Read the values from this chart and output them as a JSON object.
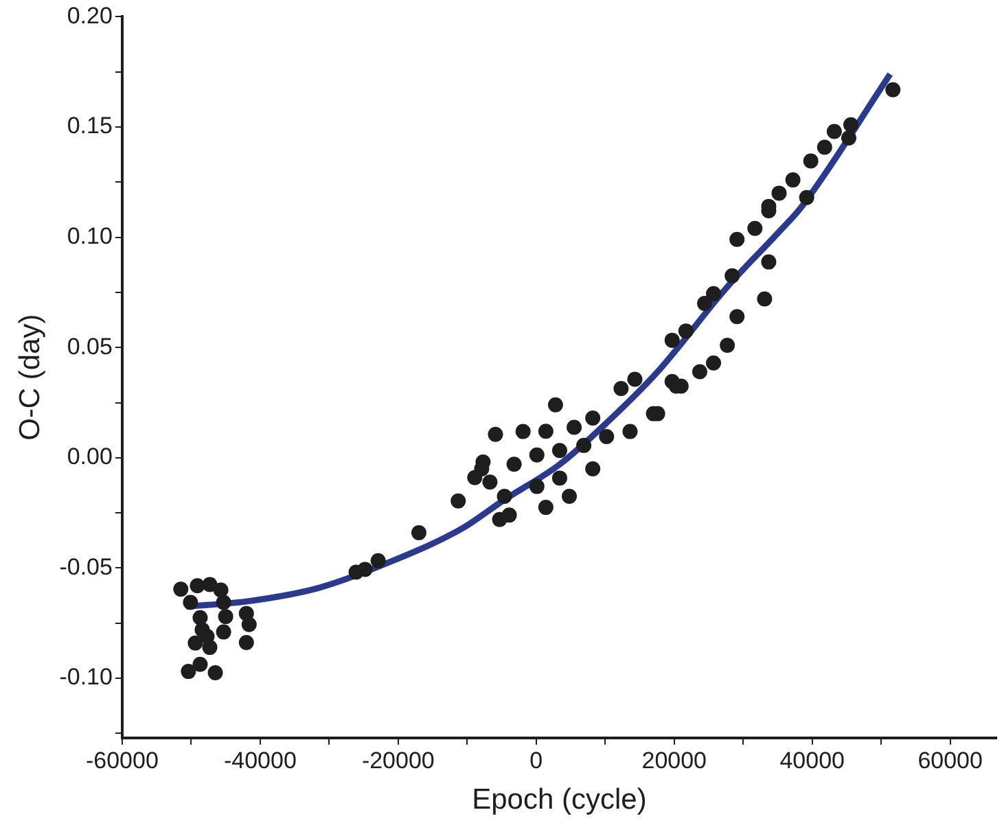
{
  "chart_data": {
    "type": "scatter",
    "xlabel": "Epoch (cycle)",
    "ylabel": "O-C (day)",
    "xlim": [
      -60000,
      66700
    ],
    "ylim": [
      -0.127,
      0.2
    ],
    "xticks": [
      -60000,
      {
        "value": -50000,
        "label": null
      },
      -40000,
      {
        "value": -30000,
        "label": null
      },
      -20000,
      {
        "value": -10000,
        "label": null
      },
      0,
      {
        "value": 10000,
        "label": null
      },
      20000,
      {
        "value": 30000,
        "label": null
      },
      40000,
      {
        "value": 50000,
        "label": null
      },
      60000
    ],
    "yticks": [
      {
        "value": -0.125,
        "label": null
      },
      {
        "value": -0.1,
        "label": "-0.10"
      },
      {
        "value": -0.075,
        "label": null
      },
      {
        "value": -0.05,
        "label": "-0.05"
      },
      {
        "value": -0.025,
        "label": null
      },
      {
        "value": 0,
        "label": "0.00"
      },
      {
        "value": 0.025,
        "label": null
      },
      {
        "value": 0.05,
        "label": "0.05"
      },
      {
        "value": 0.075,
        "label": null
      },
      {
        "value": 0.1,
        "label": "0.10"
      },
      {
        "value": 0.125,
        "label": null
      },
      {
        "value": 0.15,
        "label": "0.15"
      },
      {
        "value": 0.175,
        "label": null
      },
      {
        "value": 0.2,
        "label": "0.20"
      }
    ],
    "grid": false,
    "legend": false,
    "marker": "circle",
    "series": [
      {
        "type": "scatter",
        "color": "#1e1e1e",
        "x": [
          -51500,
          -49100,
          -47300,
          -45700,
          -50100,
          -45300,
          -48700,
          -45000,
          -42000,
          -41600,
          -48400,
          -45300,
          -49400,
          -42000,
          -47700,
          -48700,
          -50400,
          -46500,
          -47300,
          -26100,
          -24800,
          -22900,
          -17000,
          -11300,
          -8900,
          -7900,
          -7700,
          -5900,
          -5300,
          -3900,
          2800,
          1400,
          8200,
          12300,
          14300,
          17000,
          20300,
          13600,
          -3200,
          100,
          3400,
          6900,
          100,
          3400,
          -1900,
          1400,
          5500,
          -6700,
          8200,
          10200,
          -4600,
          4800,
          17600,
          19700,
          19700,
          21700,
          24400,
          25700,
          29100,
          31700,
          33700,
          28400,
          33700,
          33100,
          29100,
          27700,
          25700,
          23700,
          21000,
          51700,
          45600,
          43200,
          41800,
          39800,
          37200,
          35200,
          33700,
          39200,
          45300
        ],
        "values": [
          -0.0596,
          -0.058,
          -0.0575,
          -0.06,
          -0.0656,
          -0.0656,
          -0.0725,
          -0.072,
          -0.0706,
          -0.0756,
          -0.078,
          -0.079,
          -0.084,
          -0.0838,
          -0.081,
          -0.0937,
          -0.0969,
          -0.0975,
          -0.086,
          -0.0519,
          -0.0506,
          -0.0467,
          -0.034,
          -0.0196,
          -0.009,
          -0.005,
          -0.0019,
          0.0106,
          -0.028,
          -0.026,
          0.024,
          -0.0225,
          0.018,
          0.0314,
          0.0356,
          0.02,
          0.0325,
          0.0119,
          -0.0029,
          0.0013,
          0.0033,
          0.0056,
          -0.013,
          -0.0092,
          0.0119,
          0.012,
          0.0138,
          -0.011,
          -0.005,
          0.0096,
          -0.0175,
          -0.0175,
          0.02,
          0.0346,
          0.0533,
          0.0575,
          0.07,
          0.0744,
          0.099,
          0.104,
          0.114,
          0.0825,
          0.0888,
          0.072,
          0.064,
          0.051,
          0.043,
          0.039,
          0.0325,
          0.1669,
          0.151,
          0.148,
          0.1408,
          0.1346,
          0.126,
          0.12,
          0.112,
          0.118,
          0.145
        ]
      },
      {
        "type": "line",
        "color": "#2b3a8c",
        "marker": "none",
        "x": [
          -50700,
          -41600,
          -31500,
          -21400,
          -10700,
          -4600,
          3400,
          10200,
          17600,
          27700,
          35200,
          38500,
          51300
        ],
        "values": [
          -0.0675,
          -0.065,
          -0.059,
          -0.0475,
          -0.032,
          -0.019,
          -0.003,
          0.0158,
          0.039,
          0.0775,
          0.1025,
          0.114,
          0.174
        ]
      }
    ]
  }
}
